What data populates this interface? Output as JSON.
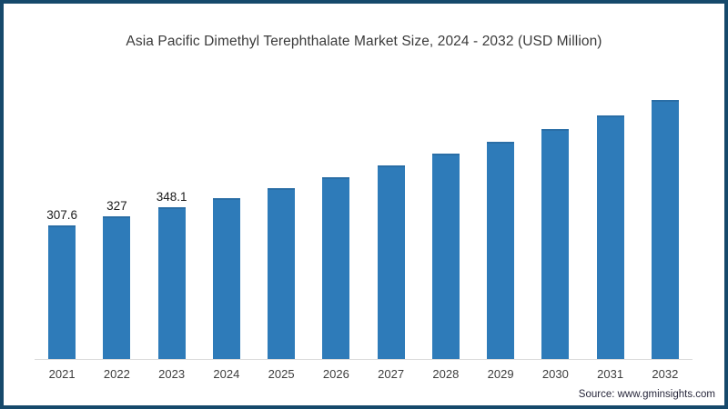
{
  "header": {
    "title": "Asia Pacific Dimethyl Terephthalate Market Size, 2024 - 2032 (USD Million)"
  },
  "footer": {
    "source": "Source: www.gminsights.com"
  },
  "chart_data": {
    "type": "bar",
    "title": "Asia Pacific Dimethyl Terephthalate Market Size, 2024 - 2032 (USD Million)",
    "categories": [
      "2021",
      "2022",
      "2023",
      "2024",
      "2025",
      "2026",
      "2027",
      "2028",
      "2029",
      "2030",
      "2031",
      "2032"
    ],
    "values": [
      307.6,
      327,
      348.1,
      370,
      393,
      418,
      444,
      471,
      499,
      528,
      560,
      595
    ],
    "data_labels": [
      "307.6",
      "327",
      "348.1",
      "",
      "",
      "",
      "",
      "",
      "",
      "",
      "",
      ""
    ],
    "xlabel": "",
    "ylabel": "",
    "ylim": [
      0,
      620
    ],
    "grid": false,
    "legend": false,
    "bar_color": "#2e7bb9",
    "axis_line_color": "#dcdcdc",
    "frame_border_color": "#16496b"
  }
}
